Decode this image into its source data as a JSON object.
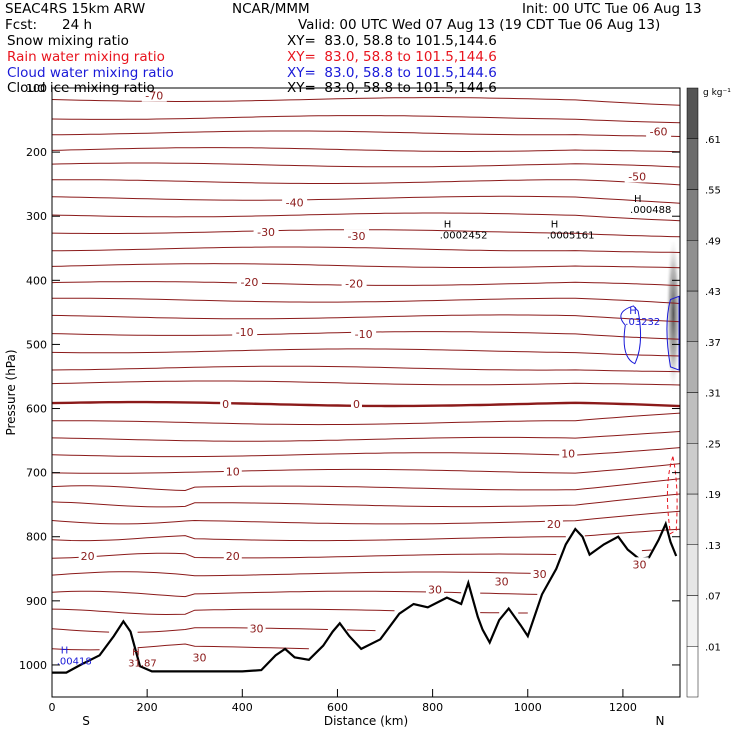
{
  "header": {
    "model": "SEAC4RS 15km ARW",
    "center": "NCAR/MMM",
    "init": "Init: 00 UTC Tue 06 Aug 13",
    "fcst_label": "Fcst:",
    "fcst_value": "24 h",
    "valid": "Valid: 00 UTC Wed 07 Aug 13 (19 CDT Tue 06 Aug 13)"
  },
  "fields": [
    {
      "name": "Snow mixing ratio",
      "xy": "XY=  83.0, 58.8 to 101.5,144.6",
      "color": "#000000"
    },
    {
      "name": "Rain water mixing ratio",
      "xy": "XY=  83.0, 58.8 to 101.5,144.6",
      "color": "#e8141e"
    },
    {
      "name": "Cloud water mixing ratio",
      "xy": "XY=  83.0, 58.8 to 101.5,144.6",
      "color": "#1a1ad8"
    },
    {
      "name": "Cloud ice mixing ratio",
      "xy": "XY=  83.0, 58.8 to 101.5,144.6",
      "color": "#000000"
    }
  ],
  "colorbar": {
    "unit": "g kg⁻¹",
    "ticks": [
      ".01",
      ".07",
      ".13",
      ".19",
      ".25",
      ".31",
      ".37",
      ".43",
      ".49",
      ".55",
      ".61"
    ],
    "colors": [
      "#ffffff",
      "#f2f2f2",
      "#e6e6e6",
      "#d9d9d9",
      "#cccccc",
      "#bfbfbf",
      "#b0b0b0",
      "#a0a0a0",
      "#909090",
      "#7f7f7f",
      "#6c6c6c",
      "#555555"
    ]
  },
  "chart_data": {
    "type": "contour",
    "xlabel": "Distance (km)",
    "ylabel": "Pressure (hPa)",
    "xlim": [
      0,
      1320
    ],
    "ylim": [
      1050,
      100
    ],
    "x_ticks": [
      0,
      200,
      400,
      600,
      800,
      1000,
      1200
    ],
    "y_ticks": [
      100,
      200,
      300,
      400,
      500,
      600,
      700,
      800,
      900,
      1000
    ],
    "x_end_labels": {
      "left": "S",
      "right": "N"
    },
    "temperature_contour_color": "#8b1a1a",
    "temperature_labels": [
      {
        "text": "-70",
        "x": 215,
        "p": 112
      },
      {
        "text": "-60",
        "x": 1275,
        "p": 168
      },
      {
        "text": "-50",
        "x": 1230,
        "p": 238
      },
      {
        "text": "-40",
        "x": 510,
        "p": 279
      },
      {
        "text": "-30",
        "x": 450,
        "p": 325
      },
      {
        "text": "-30",
        "x": 640,
        "p": 331
      },
      {
        "text": "-20",
        "x": 415,
        "p": 403
      },
      {
        "text": "-20",
        "x": 635,
        "p": 405
      },
      {
        "text": "-10",
        "x": 405,
        "p": 481
      },
      {
        "text": "-10",
        "x": 655,
        "p": 484
      },
      {
        "text": "0",
        "x": 365,
        "p": 593
      },
      {
        "text": "0",
        "x": 640,
        "p": 593
      },
      {
        "text": "10",
        "x": 380,
        "p": 698
      },
      {
        "text": "10",
        "x": 1085,
        "p": 670
      },
      {
        "text": "20",
        "x": 75,
        "p": 830
      },
      {
        "text": "20",
        "x": 380,
        "p": 830
      },
      {
        "text": "20",
        "x": 1055,
        "p": 780
      },
      {
        "text": "30",
        "x": 430,
        "p": 943
      },
      {
        "text": "30",
        "x": 310,
        "p": 988
      },
      {
        "text": "30",
        "x": 805,
        "p": 882
      },
      {
        "text": "30",
        "x": 945,
        "p": 870
      },
      {
        "text": "30",
        "x": 1025,
        "p": 858
      },
      {
        "text": "30",
        "x": 1235,
        "p": 843
      }
    ],
    "isotherm_levels_hpa": [
      118,
      146,
      170,
      196,
      220,
      246,
      272,
      298,
      324,
      351,
      377,
      405,
      431,
      457,
      483,
      510,
      537,
      560,
      593,
      622,
      648,
      672,
      698,
      724,
      750,
      777,
      803,
      830,
      858,
      888,
      916,
      945,
      973
    ],
    "maxima": [
      {
        "text": ".000488",
        "x": 1215,
        "p": 290
      },
      {
        "text": ".0002452",
        "x": 815,
        "p": 330
      },
      {
        "text": ".0005161",
        "x": 1040,
        "p": 330
      },
      {
        "text": ".03232",
        "x": 1205,
        "p": 465
      },
      {
        "text": ".00418",
        "x": 10,
        "p": 995
      },
      {
        "text": "31.87",
        "x": 160,
        "p": 998
      }
    ],
    "terrain_pressure": [
      [
        0,
        1012
      ],
      [
        30,
        1012
      ],
      [
        60,
        1000
      ],
      [
        100,
        985
      ],
      [
        130,
        955
      ],
      [
        150,
        932
      ],
      [
        165,
        948
      ],
      [
        185,
        1002
      ],
      [
        210,
        1010
      ],
      [
        300,
        1010
      ],
      [
        400,
        1010
      ],
      [
        440,
        1008
      ],
      [
        470,
        985
      ],
      [
        490,
        975
      ],
      [
        510,
        988
      ],
      [
        540,
        992
      ],
      [
        570,
        970
      ],
      [
        590,
        948
      ],
      [
        605,
        935
      ],
      [
        625,
        955
      ],
      [
        650,
        975
      ],
      [
        690,
        960
      ],
      [
        730,
        920
      ],
      [
        760,
        905
      ],
      [
        790,
        910
      ],
      [
        830,
        895
      ],
      [
        860,
        905
      ],
      [
        875,
        872
      ],
      [
        895,
        925
      ],
      [
        905,
        945
      ],
      [
        920,
        965
      ],
      [
        940,
        930
      ],
      [
        960,
        912
      ],
      [
        985,
        938
      ],
      [
        1000,
        955
      ],
      [
        1030,
        890
      ],
      [
        1060,
        850
      ],
      [
        1080,
        812
      ],
      [
        1100,
        788
      ],
      [
        1115,
        800
      ],
      [
        1130,
        828
      ],
      [
        1160,
        812
      ],
      [
        1190,
        800
      ],
      [
        1210,
        820
      ],
      [
        1235,
        835
      ],
      [
        1255,
        832
      ],
      [
        1275,
        805
      ],
      [
        1290,
        780
      ],
      [
        1300,
        808
      ],
      [
        1312,
        830
      ]
    ]
  }
}
